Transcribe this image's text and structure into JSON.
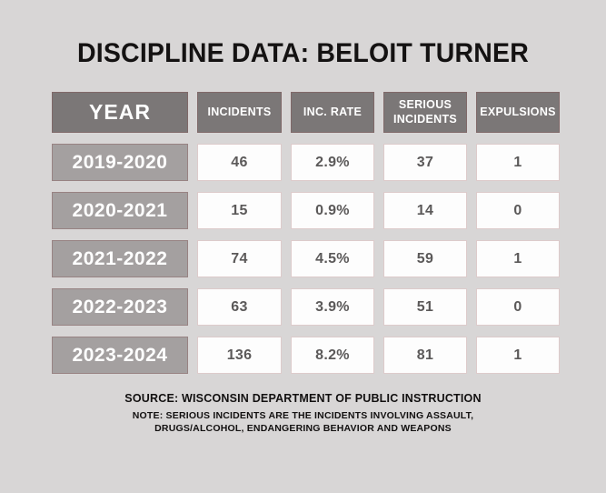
{
  "title": "DISCIPLINE DATA: BELOIT TURNER",
  "colors": {
    "background": "#d8d6d6",
    "header_chip": "#7b7777",
    "year_chip": "#a4a0a0",
    "value_cell": "#fdfdfd",
    "value_text": "#5b5959",
    "title_text": "#141212",
    "cell_border_rose": "#a06e6e"
  },
  "table": {
    "headers": [
      "YEAR",
      "INCIDENTS",
      "INC. RATE",
      "SERIOUS INCIDENTS",
      "EXPULSIONS"
    ],
    "rows": [
      {
        "year": "2019-2020",
        "incidents": "46",
        "inc_rate": "2.9%",
        "serious": "37",
        "expulsions": "1"
      },
      {
        "year": "2020-2021",
        "incidents": "15",
        "inc_rate": "0.9%",
        "serious": "14",
        "expulsions": "0"
      },
      {
        "year": "2021-2022",
        "incidents": "74",
        "inc_rate": "4.5%",
        "serious": "59",
        "expulsions": "1"
      },
      {
        "year": "2022-2023",
        "incidents": "63",
        "inc_rate": "3.9%",
        "serious": "51",
        "expulsions": "0"
      },
      {
        "year": "2023-2024",
        "incidents": "136",
        "inc_rate": "8.2%",
        "serious": "81",
        "expulsions": "1"
      }
    ]
  },
  "footer": {
    "source": "SOURCE: WISCONSIN DEPARTMENT OF PUBLIC INSTRUCTION",
    "note_line1": "NOTE: SERIOUS INCIDENTS ARE THE INCIDENTS INVOLVING ASSAULT,",
    "note_line2": "DRUGS/ALCOHOL, ENDANGERING BEHAVIOR AND WEAPONS"
  },
  "chart_data": {
    "type": "table",
    "title": "DISCIPLINE DATA: BELOIT TURNER",
    "columns": [
      "YEAR",
      "INCIDENTS",
      "INC. RATE",
      "SERIOUS INCIDENTS",
      "EXPULSIONS"
    ],
    "rows": [
      [
        "2019-2020",
        46,
        "2.9%",
        37,
        1
      ],
      [
        "2020-2021",
        15,
        "0.9%",
        14,
        0
      ],
      [
        "2021-2022",
        74,
        "4.5%",
        59,
        1
      ],
      [
        "2022-2023",
        63,
        "3.9%",
        51,
        0
      ],
      [
        "2023-2024",
        136,
        "8.2%",
        81,
        1
      ]
    ],
    "source": "SOURCE: WISCONSIN DEPARTMENT OF PUBLIC INSTRUCTION",
    "note": "NOTE: SERIOUS INCIDENTS ARE THE INCIDENTS INVOLVING ASSAULT, DRUGS/ALCOHOL, ENDANGERING BEHAVIOR AND WEAPONS"
  }
}
